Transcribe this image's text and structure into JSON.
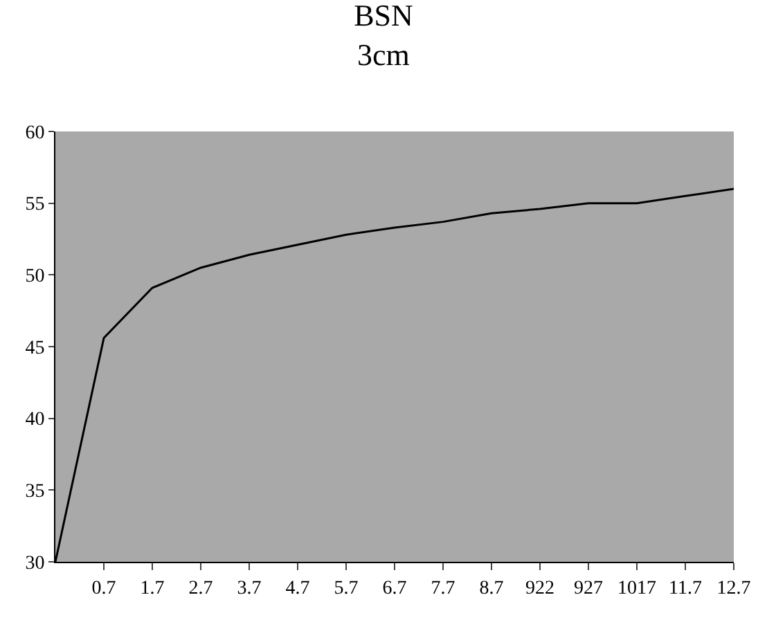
{
  "chart_data": {
    "type": "line",
    "title": "BSN",
    "subtitle": "3cm",
    "categories": [
      null,
      "0.7",
      "1.7",
      "2.7",
      "3.7",
      "4.7",
      "5.7",
      "6.7",
      "7.7",
      "8.7",
      "922",
      "927",
      "1017",
      "11.7",
      "12.7"
    ],
    "values": [
      30,
      45.6,
      49.1,
      50.5,
      51.4,
      52.1,
      52.8,
      53.3,
      53.7,
      54.3,
      54.6,
      55.0,
      55.0,
      55.5,
      56.0
    ],
    "color": "#000000",
    "ylim": [
      30,
      60
    ],
    "yticks": [
      30,
      35,
      40,
      45,
      50,
      55,
      60
    ],
    "grid": false,
    "legend": false,
    "marker": "none",
    "line_style": "solid"
  }
}
